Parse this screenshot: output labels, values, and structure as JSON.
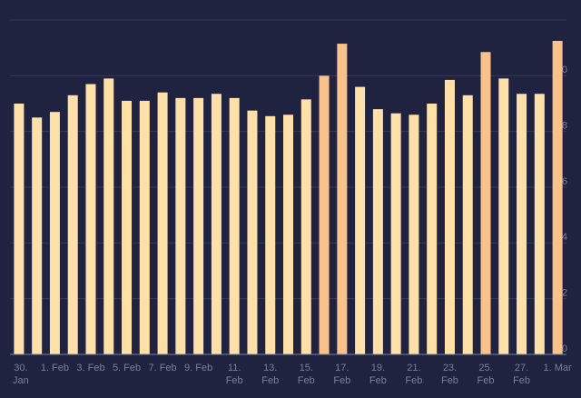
{
  "chart_data": {
    "type": "bar",
    "categories": [
      "30. Jan",
      null,
      "1. Feb",
      null,
      "3. Feb",
      null,
      "5. Feb",
      null,
      "7. Feb",
      null,
      "9. Feb",
      null,
      "11. Feb",
      null,
      "13. Feb",
      null,
      "15. Feb",
      null,
      "17. Feb",
      null,
      "19. Feb",
      null,
      "21. Feb",
      null,
      "23. Feb",
      null,
      "25. Feb",
      null,
      "27. Feb",
      null,
      "1. Mar"
    ],
    "values": [
      9.0,
      8.5,
      8.7,
      9.3,
      9.7,
      9.9,
      9.1,
      9.1,
      9.4,
      9.2,
      9.2,
      9.35,
      9.2,
      8.75,
      8.55,
      8.6,
      9.15,
      10.0,
      11.15,
      9.6,
      8.8,
      8.65,
      8.6,
      9.0,
      9.85,
      9.3,
      10.85,
      9.9,
      9.35,
      9.35,
      11.25
    ],
    "colors": [
      "#ffe0a8",
      "#ffe0a8",
      "#ffe0a8",
      "#ffe0a8",
      "#ffe0a8",
      "#ffe0a8",
      "#ffe0a8",
      "#ffe0a8",
      "#ffe0a8",
      "#ffe0a8",
      "#ffe0a8",
      "#ffe0a8",
      "#ffe0a8",
      "#ffe0a8",
      "#ffe0a8",
      "#ffe0a8",
      "#ffe0a8",
      "#f8c28a",
      "#f8c28a",
      "#ffe0a8",
      "#ffe0a8",
      "#ffe0a8",
      "#ffe0a8",
      "#ffe0a8",
      "#ffe0a8",
      "#ffe0a8",
      "#f8c28a",
      "#ffe0a8",
      "#ffe0a8",
      "#ffe0a8",
      "#f8c28a"
    ],
    "ylim": [
      0,
      12
    ],
    "yticks": [
      0,
      2,
      4,
      6,
      8,
      10
    ],
    "grid": true
  }
}
